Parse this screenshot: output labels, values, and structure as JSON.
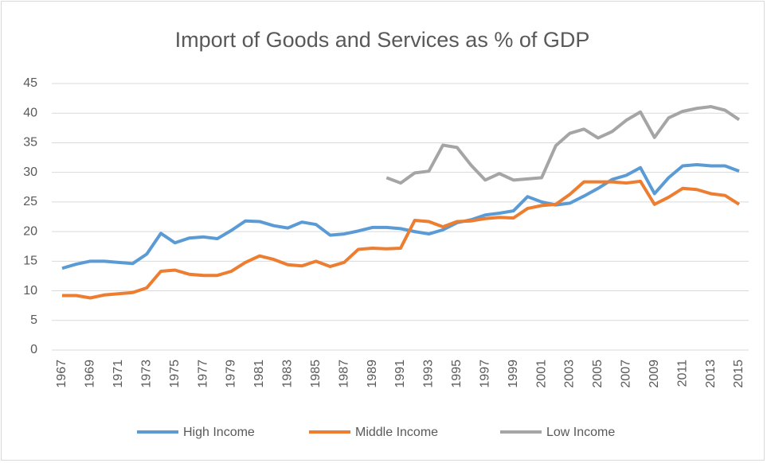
{
  "chart_data": {
    "type": "line",
    "title": "Import of Goods and Services as % of GDP",
    "x": [
      1967,
      1968,
      1969,
      1970,
      1971,
      1972,
      1973,
      1974,
      1975,
      1976,
      1977,
      1978,
      1979,
      1980,
      1981,
      1982,
      1983,
      1984,
      1985,
      1986,
      1987,
      1988,
      1989,
      1990,
      1991,
      1992,
      1993,
      1994,
      1995,
      1996,
      1997,
      1998,
      1999,
      2000,
      2001,
      2002,
      2003,
      2004,
      2005,
      2006,
      2007,
      2008,
      2009,
      2010,
      2011,
      2012,
      2013,
      2014,
      2015
    ],
    "xlim": [
      1967,
      2015
    ],
    "xticks": [
      1967,
      1969,
      1971,
      1973,
      1975,
      1977,
      1979,
      1981,
      1983,
      1985,
      1987,
      1989,
      1991,
      1993,
      1995,
      1997,
      1999,
      2001,
      2003,
      2005,
      2007,
      2009,
      2011,
      2013,
      2015
    ],
    "ylim": [
      0,
      45
    ],
    "yticks": [
      0,
      5,
      10,
      15,
      20,
      25,
      30,
      35,
      40,
      45
    ],
    "grid": true,
    "legend": "bottom",
    "series": [
      {
        "name": "High Income",
        "color": "#5b9bd5",
        "values": [
          13.8,
          14.5,
          15.0,
          15.0,
          14.8,
          14.6,
          16.2,
          19.7,
          18.1,
          18.9,
          19.1,
          18.8,
          20.2,
          21.8,
          21.7,
          21.0,
          20.6,
          21.6,
          21.2,
          19.4,
          19.6,
          20.1,
          20.7,
          20.7,
          20.5,
          20.0,
          19.6,
          20.3,
          21.5,
          22.0,
          22.8,
          23.1,
          23.5,
          25.9,
          25.0,
          24.5,
          24.8,
          26.0,
          27.3,
          28.8,
          29.5,
          30.8,
          26.4,
          29.1,
          31.1,
          31.3,
          31.1,
          31.1,
          30.2
        ]
      },
      {
        "name": "Middle Income",
        "color": "#ed7d31",
        "values": [
          9.2,
          9.2,
          8.8,
          9.3,
          9.5,
          9.7,
          10.5,
          13.3,
          13.5,
          12.8,
          12.6,
          12.6,
          13.3,
          14.8,
          15.9,
          15.3,
          14.4,
          14.2,
          15.0,
          14.1,
          14.8,
          17.0,
          17.2,
          17.1,
          17.2,
          21.9,
          21.7,
          20.8,
          21.7,
          21.8,
          22.2,
          22.4,
          22.3,
          23.9,
          24.4,
          24.6,
          26.3,
          28.4,
          28.4,
          28.4,
          28.2,
          28.5,
          24.6,
          25.8,
          27.3,
          27.1,
          26.4,
          26.1,
          24.6
        ]
      },
      {
        "name": "Low Income",
        "color": "#a5a5a5",
        "values": [
          null,
          null,
          null,
          null,
          null,
          null,
          null,
          null,
          null,
          null,
          null,
          null,
          null,
          null,
          null,
          null,
          null,
          null,
          null,
          null,
          null,
          null,
          null,
          29.1,
          28.2,
          29.9,
          30.2,
          34.6,
          34.2,
          31.2,
          28.7,
          29.8,
          28.7,
          28.9,
          29.1,
          34.5,
          36.6,
          37.3,
          35.8,
          36.9,
          38.8,
          40.2,
          35.9,
          39.2,
          40.3,
          40.8,
          41.1,
          40.5,
          38.9
        ]
      }
    ]
  }
}
